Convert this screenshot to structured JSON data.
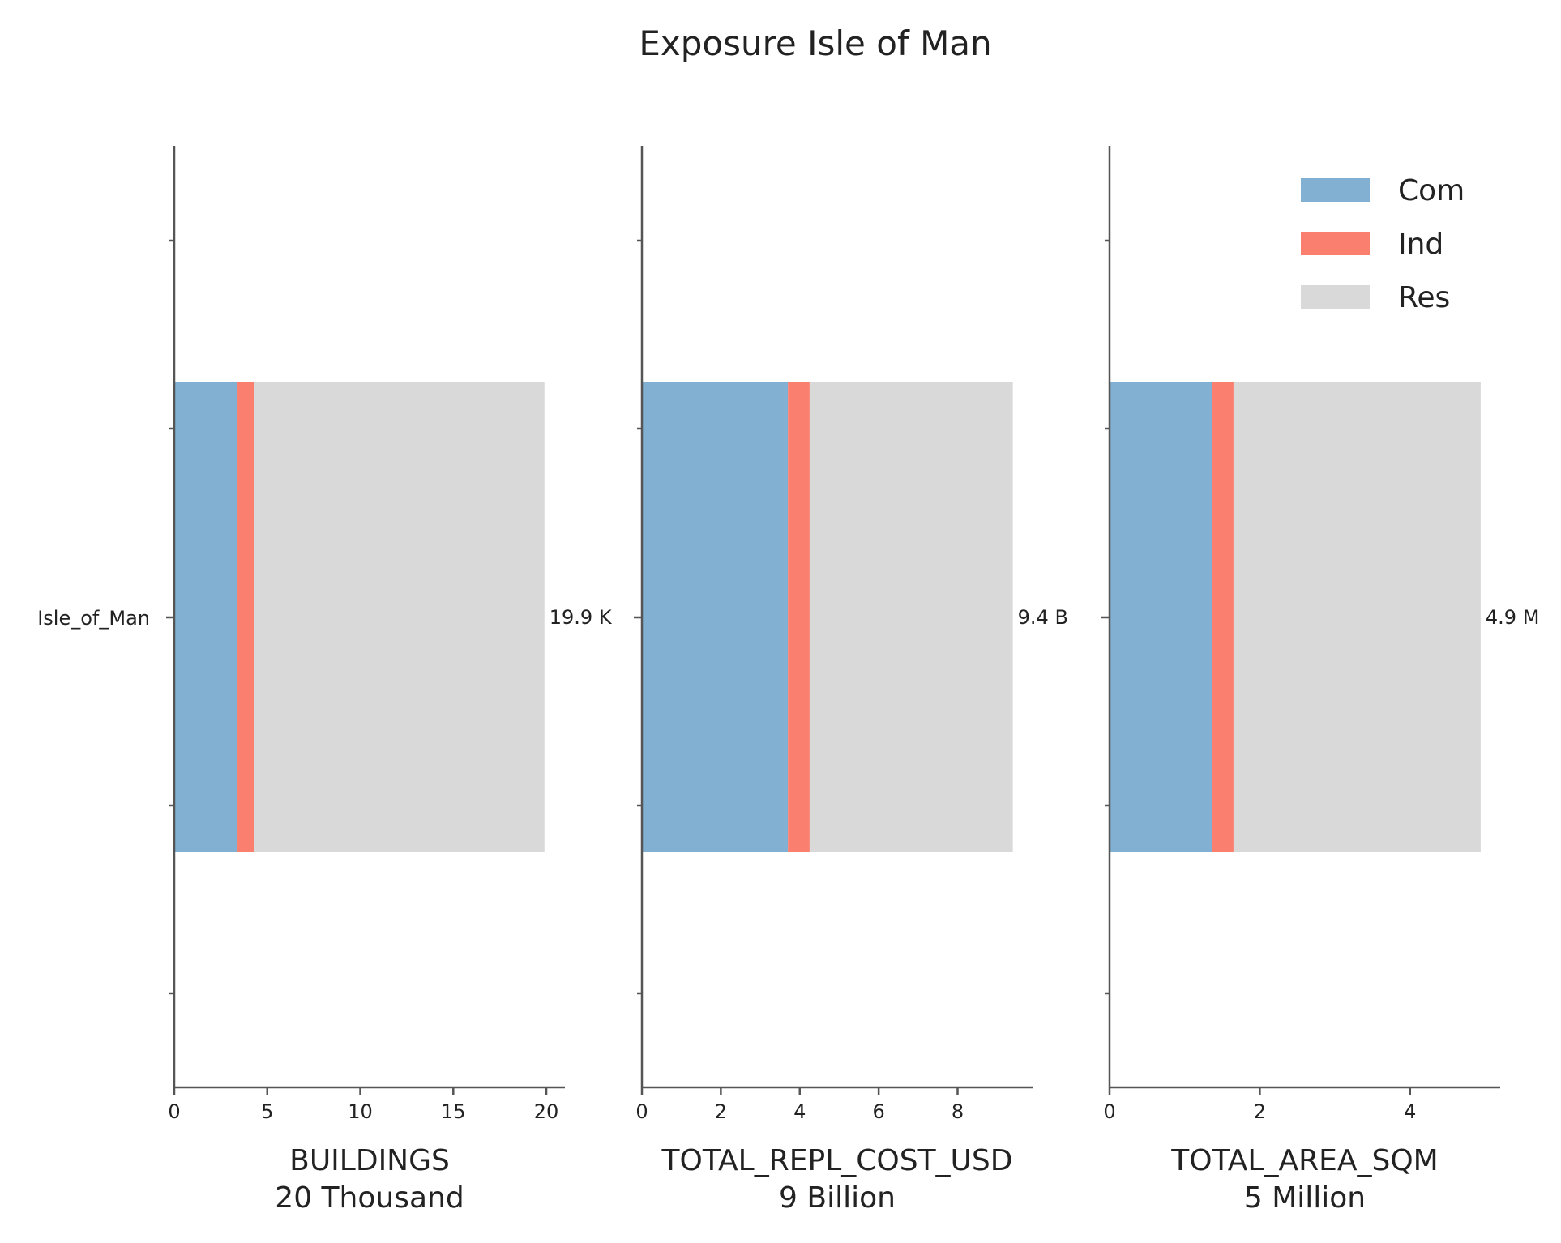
{
  "chart_data": {
    "type": "bar",
    "orientation": "horizontal",
    "stacked": true,
    "title": "Exposure Isle of Man",
    "category": "Isle_of_Man",
    "legend": {
      "placement": "top-right",
      "entries": [
        {
          "name": "Com",
          "color": "#82b0d2"
        },
        {
          "name": "Ind",
          "color": "#fa7f6f"
        },
        {
          "name": "Res",
          "color": "#d9d9d9"
        }
      ]
    },
    "grid": false,
    "panels": [
      {
        "xlabel": "BUILDINGS",
        "xlabel_sub": "20 Thousand",
        "unit": "Thousand",
        "xlim": [
          0,
          21
        ],
        "xticks": [
          0,
          5,
          10,
          15,
          20
        ],
        "series": [
          {
            "name": "Com",
            "values": [
              3.4
            ]
          },
          {
            "name": "Ind",
            "values": [
              0.9
            ]
          },
          {
            "name": "Res",
            "values": [
              15.6
            ]
          }
        ],
        "total": 19.9,
        "total_label": "19.9 K"
      },
      {
        "xlabel": "TOTAL_REPL_COST_USD",
        "xlabel_sub": "9 Billion",
        "unit": "Billion",
        "xlim": [
          0,
          9.9
        ],
        "xticks": [
          0,
          2,
          4,
          6,
          8
        ],
        "series": [
          {
            "name": "Com",
            "values": [
              3.7
            ]
          },
          {
            "name": "Ind",
            "values": [
              0.55
            ]
          },
          {
            "name": "Res",
            "values": [
              5.15
            ]
          }
        ],
        "total": 9.4,
        "total_label": "9.4 B"
      },
      {
        "xlabel": "TOTAL_AREA_SQM",
        "xlabel_sub": "5 Million",
        "unit": "Million",
        "xlim": [
          0,
          5.2
        ],
        "xticks": [
          0,
          2,
          4
        ],
        "series": [
          {
            "name": "Com",
            "values": [
              1.37
            ]
          },
          {
            "name": "Ind",
            "values": [
              0.28
            ]
          },
          {
            "name": "Res",
            "values": [
              3.29
            ]
          }
        ],
        "total": 4.94,
        "total_label": "4.9 M"
      }
    ]
  }
}
